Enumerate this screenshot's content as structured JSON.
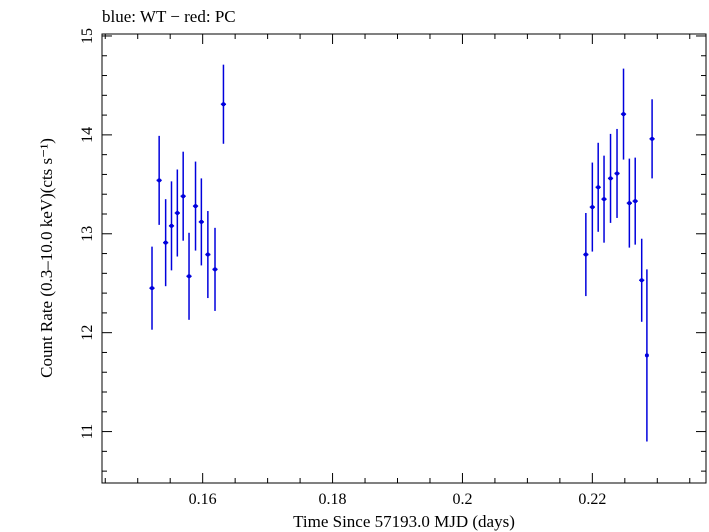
{
  "chart_data": {
    "type": "scatter",
    "title": "blue: WT − red: PC",
    "xlabel": "Time Since 57193.0 MJD (days)",
    "ylabel": "Count Rate (0.3–10.0 keV)(cts s⁻¹)",
    "xlim": [
      0.1445,
      0.2375
    ],
    "ylim": [
      10.48,
      15.02
    ],
    "xticks": [
      0.16,
      0.18,
      0.2,
      0.22
    ],
    "xtick_labels": [
      "0.16",
      "0.18",
      "0.2",
      "0.22"
    ],
    "yticks": [
      11,
      12,
      13,
      14,
      15
    ],
    "ytick_labels": [
      "11",
      "12",
      "13",
      "14",
      "15"
    ],
    "grid": false,
    "series": [
      {
        "name": "WT",
        "color": "#0000dd",
        "points": [
          {
            "x": 0.1522,
            "y": 12.45,
            "yerr": 0.42,
            "xerr": 0.0004
          },
          {
            "x": 0.1533,
            "y": 13.54,
            "yerr": 0.45,
            "xerr": 0.0004
          },
          {
            "x": 0.1543,
            "y": 12.91,
            "yerr": 0.44,
            "xerr": 0.0004
          },
          {
            "x": 0.1552,
            "y": 13.08,
            "yerr": 0.45,
            "xerr": 0.0004
          },
          {
            "x": 0.1561,
            "y": 13.21,
            "yerr": 0.44,
            "xerr": 0.0004
          },
          {
            "x": 0.157,
            "y": 13.38,
            "yerr": 0.45,
            "xerr": 0.0004
          },
          {
            "x": 0.1579,
            "y": 12.57,
            "yerr": 0.44,
            "xerr": 0.0004
          },
          {
            "x": 0.1589,
            "y": 13.28,
            "yerr": 0.45,
            "xerr": 0.0004
          },
          {
            "x": 0.1598,
            "y": 13.12,
            "yerr": 0.44,
            "xerr": 0.0004
          },
          {
            "x": 0.1608,
            "y": 12.79,
            "yerr": 0.44,
            "xerr": 0.0004
          },
          {
            "x": 0.1619,
            "y": 12.64,
            "yerr": 0.42,
            "xerr": 0.0004
          },
          {
            "x": 0.1632,
            "y": 14.31,
            "yerr": 0.4,
            "xerr": 0.0004
          },
          {
            "x": 0.219,
            "y": 12.79,
            "yerr": 0.42,
            "xerr": 0.0004
          },
          {
            "x": 0.22,
            "y": 13.27,
            "yerr": 0.45,
            "xerr": 0.0004
          },
          {
            "x": 0.2209,
            "y": 13.47,
            "yerr": 0.45,
            "xerr": 0.0004
          },
          {
            "x": 0.2218,
            "y": 13.35,
            "yerr": 0.44,
            "xerr": 0.0004
          },
          {
            "x": 0.2228,
            "y": 13.56,
            "yerr": 0.45,
            "xerr": 0.0004
          },
          {
            "x": 0.2238,
            "y": 13.61,
            "yerr": 0.45,
            "xerr": 0.0004
          },
          {
            "x": 0.2248,
            "y": 14.21,
            "yerr": 0.46,
            "xerr": 0.0004
          },
          {
            "x": 0.2257,
            "y": 13.31,
            "yerr": 0.45,
            "xerr": 0.0004
          },
          {
            "x": 0.2266,
            "y": 13.33,
            "yerr": 0.44,
            "xerr": 0.0004
          },
          {
            "x": 0.2276,
            "y": 12.53,
            "yerr": 0.42,
            "xerr": 0.0004
          },
          {
            "x": 0.2284,
            "y": 11.77,
            "yerr": 0.87,
            "xerr": 0.0002
          },
          {
            "x": 0.2292,
            "y": 13.96,
            "yerr": 0.4,
            "xerr": 0.0004
          }
        ]
      }
    ]
  }
}
